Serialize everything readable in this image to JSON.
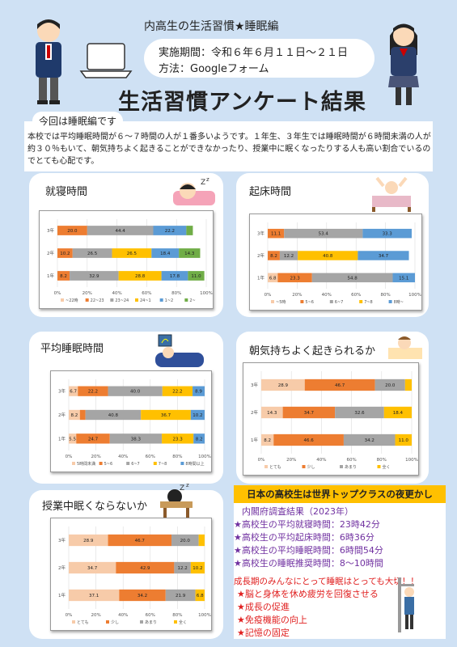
{
  "header": {
    "subtitle": "内高生の生活習慣★睡眠編",
    "period": "実施期間：令和６年６月１１日～２１日",
    "method": "方法：Googleフォーム",
    "title": "生活習慣アンケート結果"
  },
  "intro": {
    "heading": "今回は睡眠編です",
    "body": "本校では平均睡眠時間が６～７時間の人が１番多いようです。１年生、３年生では睡眠時間が６時間未満の人が約３０％もいて、朝気持ちよく起きることができなかったり、授業中に眠くなったりする人も高い割合でいるのでとても心配です。"
  },
  "colors": {
    "c1": "#f7cba9",
    "c2": "#ed7d31",
    "c3": "#a5a5a5",
    "c4": "#ffc000",
    "c5": "#5b9bd5",
    "c6": "#70ad47"
  },
  "chart_data": [
    {
      "id": "bedtime",
      "type": "bar",
      "title": "就寝時間",
      "categories": [
        "3年",
        "2年",
        "1年"
      ],
      "series": [
        {
          "name": "~22時",
          "values": [
            0.0,
            0.0,
            0.0
          ]
        },
        {
          "name": "22~23",
          "values": [
            20.0,
            10.2,
            8.2
          ]
        },
        {
          "name": "23~24",
          "values": [
            44.4,
            26.5,
            32.9
          ]
        },
        {
          "name": "24~1",
          "values": [
            0.0,
            26.5,
            28.8
          ]
        },
        {
          "name": "1~2",
          "values": [
            22.2,
            18.4,
            17.8
          ]
        },
        {
          "name": "2~",
          "values": [
            4.4,
            14.3,
            11.0
          ]
        }
      ],
      "extra_labels": {
        "3年": [
          "0.0",
          "9.0"
        ],
        "2年": [
          "6.0"
        ],
        "1年": [
          "1.4"
        ]
      },
      "xticks": [
        "0%",
        "20%",
        "40%",
        "60%",
        "80%",
        "100%"
      ]
    },
    {
      "id": "waketime",
      "type": "bar",
      "title": "起床時間",
      "categories": [
        "3年",
        "2年",
        "1年"
      ],
      "series": [
        {
          "name": "~5時",
          "values": [
            0.0,
            0.0,
            6.8
          ]
        },
        {
          "name": "5~6",
          "values": [
            11.1,
            8.2,
            23.3
          ]
        },
        {
          "name": "6~7",
          "values": [
            53.4,
            12.2,
            54.8
          ]
        },
        {
          "name": "7~8",
          "values": [
            0.0,
            40.8,
            0.0
          ]
        },
        {
          "name": "8時~",
          "values": [
            33.3,
            34.7,
            15.1
          ]
        }
      ],
      "extra_labels": {
        "3年": [
          "2.2"
        ],
        "2年": [
          "4.1"
        ],
        "1年": [
          "0.0"
        ]
      },
      "xticks": [
        "0%",
        "20%",
        "40%",
        "60%",
        "80%",
        "100%"
      ]
    },
    {
      "id": "sleepduration",
      "type": "bar",
      "title": "平均睡眠時間",
      "categories": [
        "3年",
        "2年",
        "1年"
      ],
      "series": [
        {
          "name": "5時間未満",
          "values": [
            6.7,
            8.2,
            5.5
          ]
        },
        {
          "name": "5~6",
          "values": [
            22.2,
            4.1,
            24.7
          ]
        },
        {
          "name": "6~7",
          "values": [
            40.0,
            40.8,
            38.3
          ]
        },
        {
          "name": "7~8",
          "values": [
            22.2,
            36.7,
            23.3
          ]
        },
        {
          "name": "8時間以上",
          "values": [
            8.9,
            10.2,
            8.2
          ]
        }
      ],
      "xticks": [
        "0%",
        "20%",
        "40%",
        "60%",
        "80%",
        "100%"
      ]
    },
    {
      "id": "morning",
      "type": "bar",
      "title": "朝気持ちよく起きられるか",
      "categories": [
        "3年",
        "2年",
        "1年"
      ],
      "series": [
        {
          "name": "とても",
          "values": [
            28.9,
            14.3,
            8.2
          ]
        },
        {
          "name": "少し",
          "values": [
            46.7,
            34.7,
            46.6
          ]
        },
        {
          "name": "あまり",
          "values": [
            20.0,
            32.6,
            34.2
          ]
        },
        {
          "name": "全く",
          "values": [
            4.4,
            18.4,
            11.0
          ]
        }
      ],
      "xticks": [
        "0%",
        "20%",
        "40%",
        "60%",
        "80%",
        "100%"
      ]
    },
    {
      "id": "sleepy",
      "type": "bar",
      "title": "授業中眠くならないか",
      "categories": [
        "3年",
        "2年",
        "1年"
      ],
      "series": [
        {
          "name": "とても",
          "values": [
            28.9,
            34.7,
            37.1
          ]
        },
        {
          "name": "少し",
          "values": [
            46.7,
            42.9,
            34.2
          ]
        },
        {
          "name": "あまり",
          "values": [
            20.0,
            12.2,
            21.9
          ]
        },
        {
          "name": "全く",
          "values": [
            4.4,
            10.2,
            6.8
          ]
        }
      ],
      "xticks": [
        "0%",
        "20%",
        "40%",
        "60%",
        "80%",
        "100%"
      ]
    }
  ],
  "info": {
    "title": "日本の高校生は世界トップクラスの夜更かし",
    "subtitle": "内閣府調査結果（2023年）",
    "stats": [
      "★高校生の平均就寝時間：23時42分",
      "★高校生の平均起床時間：6時36分",
      "★高校生の平均睡眠時間：6時間54分",
      "★高校生の睡眠推奨時間：8～10時間"
    ],
    "lead": "成長期のみんなにとって睡眠はとっても大切！！",
    "points": [
      "★脳と身体を休め疲労を回復させる",
      "★成長の促進",
      "★免疫機能の向上",
      "★記憶の固定"
    ]
  }
}
